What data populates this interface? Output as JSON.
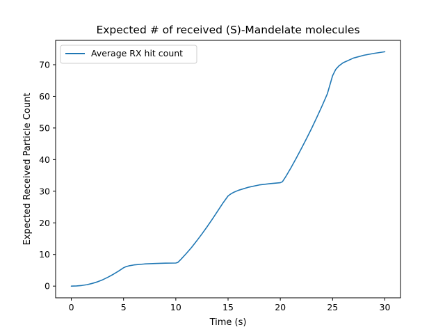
{
  "chart_data": {
    "type": "line",
    "title": "Expected # of received (S)-Mandelate molecules",
    "xlabel": "Time (s)",
    "ylabel": "Expected Received Particle Count",
    "xlim": [
      -1.5,
      31.5
    ],
    "ylim": [
      -3.7,
      77.7
    ],
    "xticks": [
      0,
      5,
      10,
      15,
      20,
      25,
      30
    ],
    "yticks": [
      0,
      10,
      20,
      30,
      40,
      50,
      60,
      70
    ],
    "grid": false,
    "legend": {
      "placement": "top-left"
    },
    "series": [
      {
        "name": "Average RX hit count",
        "color": "#1f77b4",
        "x": [
          0,
          0.5,
          1,
          1.5,
          2,
          2.5,
          3,
          3.5,
          4,
          4.5,
          5,
          5.2,
          5.5,
          6,
          7,
          8,
          9,
          10,
          10.2,
          10.5,
          11,
          11.5,
          12,
          12.5,
          13,
          13.5,
          14,
          14.5,
          15,
          15.2,
          15.5,
          16,
          17,
          18,
          19,
          20,
          20.2,
          20.5,
          21,
          21.5,
          22,
          22.5,
          23,
          23.5,
          24,
          24.5,
          25,
          25.3,
          25.6,
          26,
          27,
          28,
          29,
          30
        ],
        "y": [
          0,
          0.05,
          0.2,
          0.45,
          0.85,
          1.35,
          2.0,
          2.8,
          3.7,
          4.7,
          5.8,
          6.1,
          6.4,
          6.7,
          7.0,
          7.15,
          7.25,
          7.3,
          7.5,
          8.5,
          10.3,
          12.2,
          14.3,
          16.5,
          18.8,
          21.2,
          23.7,
          26.2,
          28.5,
          29.0,
          29.6,
          30.3,
          31.3,
          32.0,
          32.4,
          32.7,
          33.0,
          34.5,
          37.3,
          40.3,
          43.4,
          46.6,
          49.9,
          53.4,
          57.0,
          60.8,
          66.5,
          68.5,
          69.6,
          70.6,
          72.1,
          73.0,
          73.6,
          74.1
        ]
      }
    ]
  }
}
